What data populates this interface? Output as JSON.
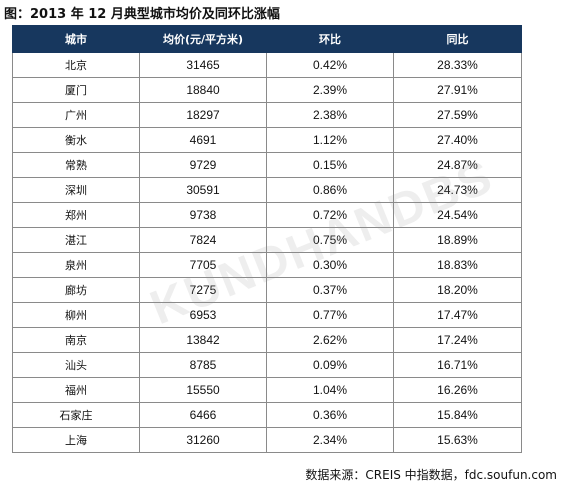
{
  "title": "图：2013 年 12 月典型城市均价及同环比涨幅",
  "table": {
    "headers": [
      "城市",
      "均价(元/平方米)",
      "环比",
      "同比"
    ],
    "rows": [
      {
        "city": "北京",
        "price": "31465",
        "mom": "0.42%",
        "yoy": "28.33%"
      },
      {
        "city": "厦门",
        "price": "18840",
        "mom": "2.39%",
        "yoy": "27.91%"
      },
      {
        "city": "广州",
        "price": "18297",
        "mom": "2.38%",
        "yoy": "27.59%"
      },
      {
        "city": "衡水",
        "price": "4691",
        "mom": "1.12%",
        "yoy": "27.40%"
      },
      {
        "city": "常熟",
        "price": "9729",
        "mom": "0.15%",
        "yoy": "24.87%"
      },
      {
        "city": "深圳",
        "price": "30591",
        "mom": "0.86%",
        "yoy": "24.73%"
      },
      {
        "city": "郑州",
        "price": "9738",
        "mom": "0.72%",
        "yoy": "24.54%"
      },
      {
        "city": "湛江",
        "price": "7824",
        "mom": "0.75%",
        "yoy": "18.89%"
      },
      {
        "city": "泉州",
        "price": "7705",
        "mom": "0.30%",
        "yoy": "18.83%"
      },
      {
        "city": "廊坊",
        "price": "7275",
        "mom": "0.37%",
        "yoy": "18.20%"
      },
      {
        "city": "柳州",
        "price": "6953",
        "mom": "0.77%",
        "yoy": "17.47%"
      },
      {
        "city": "南京",
        "price": "13842",
        "mom": "2.62%",
        "yoy": "17.24%"
      },
      {
        "city": "汕头",
        "price": "8785",
        "mom": "0.09%",
        "yoy": "16.71%"
      },
      {
        "city": "福州",
        "price": "15550",
        "mom": "1.04%",
        "yoy": "16.26%"
      },
      {
        "city": "石家庄",
        "price": "6466",
        "mom": "0.36%",
        "yoy": "15.84%"
      },
      {
        "city": "上海",
        "price": "31260",
        "mom": "2.34%",
        "yoy": "15.63%"
      }
    ]
  },
  "footer": "数据来源：CREIS 中指数据，fdc.soufun.com",
  "watermark": "KUNDHANDBS",
  "colors": {
    "header_bg": "#17375e",
    "header_text": "#ffffff",
    "grid": "#8a8a8a"
  }
}
